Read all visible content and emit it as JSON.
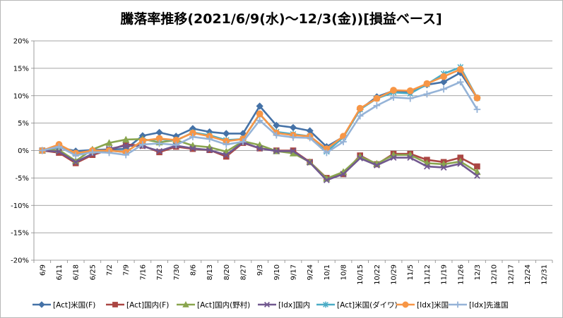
{
  "chart_data": {
    "type": "line",
    "title": "騰落率推移(2021/6/9(水)～12/3(金))[損益ベース]",
    "xlabel": "",
    "ylabel": "",
    "ylim": [
      -0.2,
      0.2
    ],
    "yticks": [
      -0.2,
      -0.15,
      -0.1,
      -0.05,
      0,
      0.05,
      0.1,
      0.15,
      0.2
    ],
    "ytick_labels": [
      "-20%",
      "-15%",
      "-10%",
      "-5%",
      "0%",
      "5%",
      "10%",
      "15%",
      "20%"
    ],
    "grid": "horizontal",
    "legend_position": "bottom",
    "categories": [
      "6/9",
      "6/11",
      "6/18",
      "6/25",
      "7/2",
      "7/9",
      "7/16",
      "7/23",
      "7/30",
      "8/6",
      "8/13",
      "8/20",
      "8/27",
      "9/3",
      "9/10",
      "9/17",
      "9/24",
      "10/1",
      "10/8",
      "10/15",
      "10/22",
      "10/29",
      "11/5",
      "11/12",
      "11/19",
      "11/26",
      "12/3",
      "12/10",
      "12/17",
      "12/24",
      "12/31"
    ],
    "series": [
      {
        "name": "[Act]米国(F)",
        "color": "#4572A7",
        "marker": "diamond",
        "values": [
          0,
          0.006,
          -0.001,
          0.001,
          0.002,
          0.003,
          0.027,
          0.033,
          0.026,
          0.04,
          0.034,
          0.031,
          0.031,
          0.081,
          0.046,
          0.042,
          0.036,
          0.007,
          0.025,
          0.075,
          0.098,
          0.109,
          0.106,
          0.12,
          0.125,
          0.142,
          0.096,
          null,
          null,
          null,
          null
        ]
      },
      {
        "name": "[Act]国内(F)",
        "color": "#AA4643",
        "marker": "square",
        "values": [
          0,
          -0.004,
          -0.023,
          -0.008,
          0.001,
          0.011,
          0.009,
          -0.003,
          0.007,
          0.003,
          0.001,
          -0.011,
          0.014,
          0.004,
          0,
          0,
          -0.021,
          -0.05,
          -0.043,
          -0.009,
          -0.025,
          -0.006,
          -0.006,
          -0.017,
          -0.021,
          -0.013,
          -0.029,
          null,
          null,
          null,
          null
        ]
      },
      {
        "name": "[Act]国内(野村)",
        "color": "#89A54E",
        "marker": "triangle",
        "values": [
          0,
          0.001,
          -0.019,
          0.002,
          0.014,
          0.02,
          0.021,
          0.015,
          0.019,
          0.009,
          0.006,
          -0.002,
          0.017,
          0.01,
          -0.001,
          -0.005,
          -0.021,
          -0.051,
          -0.039,
          -0.011,
          -0.024,
          -0.008,
          -0.008,
          -0.023,
          -0.025,
          -0.02,
          -0.039,
          null,
          null,
          null,
          null
        ]
      },
      {
        "name": "[Idx]国内",
        "color": "#71588F",
        "marker": "x",
        "values": [
          0,
          -0.002,
          -0.021,
          -0.006,
          0.003,
          0.009,
          0.008,
          -0.001,
          0.009,
          0.004,
          0.001,
          -0.008,
          0.015,
          0.004,
          -0.001,
          -0.001,
          -0.022,
          -0.054,
          -0.043,
          -0.014,
          -0.027,
          -0.013,
          -0.013,
          -0.029,
          -0.031,
          -0.024,
          -0.046,
          null,
          null,
          null,
          null
        ]
      },
      {
        "name": "[Act]米国(ダイワ)",
        "color": "#4BACC6",
        "marker": "star",
        "values": [
          0,
          0.008,
          -0.006,
          -0.001,
          0,
          -0.003,
          0.018,
          0.021,
          0.018,
          0.033,
          0.028,
          0.019,
          0.021,
          0.066,
          0.034,
          0.03,
          0.026,
          -0.002,
          0.024,
          0.075,
          0.095,
          0.106,
          0.104,
          0.121,
          0.14,
          0.152,
          0.096,
          null,
          null,
          null,
          null
        ]
      },
      {
        "name": "[Idx]米国",
        "color": "#F79646",
        "marker": "circle",
        "values": [
          0,
          0.011,
          -0.005,
          0,
          0,
          -0.003,
          0.018,
          0.022,
          0.019,
          0.032,
          0.026,
          0.017,
          0.021,
          0.067,
          0.032,
          0.028,
          0.026,
          0.003,
          0.026,
          0.077,
          0.095,
          0.11,
          0.109,
          0.122,
          0.135,
          0.148,
          0.096,
          null,
          null,
          null,
          null
        ]
      },
      {
        "name": "[Idx]先進国",
        "color": "#95B3D7",
        "marker": "plus",
        "values": [
          0,
          0.007,
          -0.009,
          -0.003,
          -0.004,
          -0.008,
          0.011,
          0.013,
          0.01,
          0.025,
          0.021,
          0.011,
          0.016,
          0.055,
          0.028,
          0.024,
          0.023,
          -0.004,
          0.016,
          0.063,
          0.082,
          0.097,
          0.095,
          0.103,
          0.112,
          0.125,
          0.075,
          null,
          null,
          null,
          null
        ]
      }
    ]
  }
}
